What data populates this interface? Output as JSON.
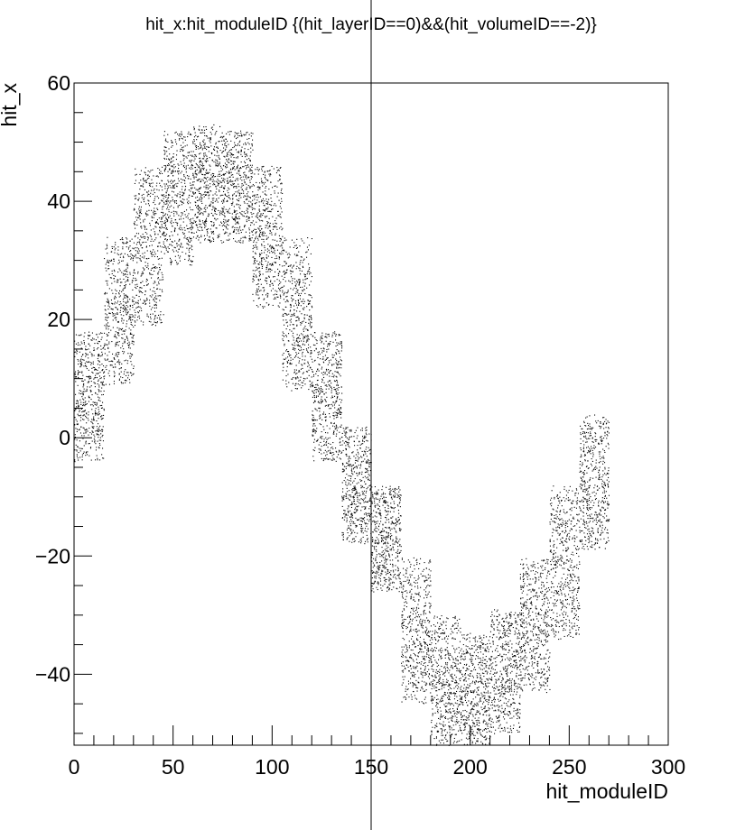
{
  "chart_data": {
    "type": "scatter",
    "title": "hit_x:hit_moduleID {(hit_layerID==0)&&(hit_volumeID==-2)}",
    "xlabel": "hit_moduleID",
    "ylabel": "hit_x",
    "xlim": [
      0,
      300
    ],
    "ylim": [
      -52,
      60
    ],
    "x_ticks": [
      0,
      50,
      100,
      150,
      200,
      250,
      300
    ],
    "x_tick_labels": [
      "0",
      "50",
      "100",
      "150",
      "200",
      "250",
      "300"
    ],
    "y_ticks": [
      -40,
      -20,
      0,
      20,
      40,
      60
    ],
    "y_tick_labels": [
      "−40",
      "−20",
      "0",
      "20",
      "40",
      "60"
    ],
    "grid": false,
    "legend": "none",
    "marker_color": "#000000",
    "point_style": "dense-dots",
    "series": [
      {
        "x_min": [
          0,
          15,
          30,
          45,
          60,
          75,
          90,
          105,
          120,
          135,
          150,
          165,
          180,
          195,
          210,
          225,
          240,
          255
        ],
        "x_max": [
          15,
          30,
          45,
          60,
          75,
          90,
          105,
          120,
          135,
          150,
          165,
          180,
          195,
          210,
          225,
          240,
          255,
          270
        ],
        "y_min": [
          -4,
          9,
          19,
          29,
          33,
          33,
          22,
          8,
          -4,
          -18,
          -26,
          -45,
          -52,
          -52,
          -50,
          -43,
          -34,
          -19
        ],
        "y_max": [
          18,
          34,
          46,
          52,
          53,
          52,
          46,
          34,
          18,
          2,
          -8,
          -20,
          -30,
          -33,
          -29,
          -20,
          -8,
          4
        ]
      }
    ]
  }
}
